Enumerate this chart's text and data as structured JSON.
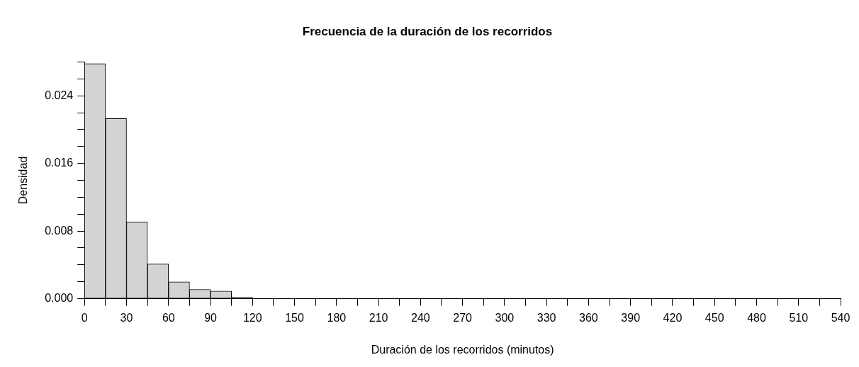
{
  "chart_data": {
    "type": "histogram",
    "title": "Frecuencia de la duración de los recorridos",
    "xlabel": "Duración de los recorridos (minutos)",
    "ylabel": "Densidad",
    "bins": [
      0,
      15,
      30,
      45,
      60,
      75,
      90,
      105,
      120,
      135,
      150,
      165,
      180,
      195,
      210,
      225,
      240,
      255,
      270,
      285,
      300,
      315,
      330,
      345,
      360,
      375,
      390,
      405,
      420,
      435,
      450,
      465,
      480,
      495,
      510,
      525,
      540
    ],
    "values": [
      0.0278,
      0.0213,
      0.0091,
      0.0041,
      0.002,
      0.0011,
      0.0009,
      0.0002,
      0,
      0,
      0,
      0,
      0,
      0,
      0,
      0,
      0,
      0,
      0,
      0,
      0,
      0,
      0,
      0,
      0,
      0,
      0,
      0,
      0,
      0,
      0,
      0,
      0,
      0,
      0,
      0
    ],
    "color": "#d3d3d3",
    "xlim": [
      0,
      540
    ],
    "xticks": [
      0,
      {
        "value": 15,
        "label": null
      },
      30,
      {
        "value": 45,
        "label": null
      },
      60,
      {
        "value": 75,
        "label": null
      },
      90,
      {
        "value": 105,
        "label": null
      },
      120,
      {
        "value": 135,
        "label": null
      },
      150,
      {
        "value": 165,
        "label": null
      },
      180,
      {
        "value": 195,
        "label": null
      },
      210,
      {
        "value": 225,
        "label": null
      },
      240,
      {
        "value": 255,
        "label": null
      },
      270,
      {
        "value": 285,
        "label": null
      },
      300,
      {
        "value": 315,
        "label": null
      },
      330,
      {
        "value": 345,
        "label": null
      },
      360,
      {
        "value": 375,
        "label": null
      },
      390,
      {
        "value": 405,
        "label": null
      },
      420,
      {
        "value": 435,
        "label": null
      },
      450,
      {
        "value": 465,
        "label": null
      },
      480,
      {
        "value": 495,
        "label": null
      },
      510,
      {
        "value": 525,
        "label": null
      },
      540
    ],
    "ylim": [
      0,
      0.028
    ],
    "yticks": [
      {
        "value": 0,
        "label": "0.000"
      },
      {
        "value": 0.002,
        "label": null
      },
      {
        "value": 0.004,
        "label": null
      },
      {
        "value": 0.006,
        "label": null
      },
      {
        "value": 0.008,
        "label": "0.008"
      },
      {
        "value": 0.01,
        "label": null
      },
      {
        "value": 0.012,
        "label": null
      },
      {
        "value": 0.014,
        "label": null
      },
      {
        "value": 0.016,
        "label": "0.016"
      },
      {
        "value": 0.018,
        "label": null
      },
      {
        "value": 0.02,
        "label": null
      },
      {
        "value": 0.022,
        "label": null
      },
      {
        "value": 0.024,
        "label": "0.024"
      },
      {
        "value": 0.026,
        "label": null
      },
      {
        "value": 0.028,
        "label": null
      }
    ],
    "grid": false,
    "legend": false
  }
}
